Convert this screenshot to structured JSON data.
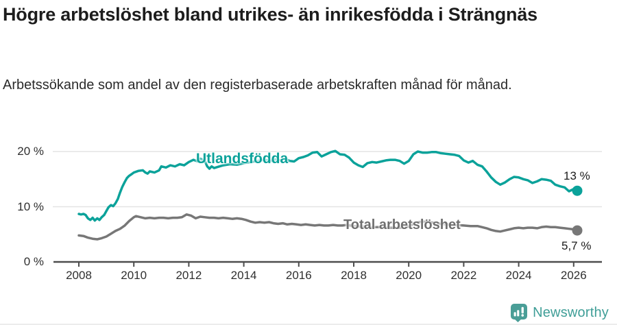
{
  "header": {
    "title": "Högre arbetslöshet bland utrikes- än inrikesfödda i Strängnäs",
    "subtitle": "Arbetssökande som andel av den registerbaserade arbetskraften månad för månad."
  },
  "footer": {
    "brand": "Newsworthy",
    "logo_icon": "bar-chart-speech-bubble-icon"
  },
  "colors": {
    "teal_line": "#0ba29a",
    "gray_line": "#777777",
    "axis": "#4d4d4d",
    "grid": "#e3e3e3",
    "logo_teal": "#4a9e97",
    "text": "#1d1d1d"
  },
  "chart_data": {
    "type": "line",
    "title": "Högre arbetslöshet bland utrikes- än inrikesfödda i Strängnäs",
    "subtitle": "Arbetssökande som andel av den registerbaserade arbetskraften månad för månad.",
    "x_axis": {
      "range": [
        2007.1,
        2027.0
      ],
      "ticks": [
        2008,
        2010,
        2012,
        2014,
        2016,
        2018,
        2020,
        2022,
        2024,
        2026
      ]
    },
    "y_axis": {
      "range": [
        0,
        23
      ],
      "unit": "%",
      "ticks": [
        {
          "value": 0,
          "label": "0 %"
        },
        {
          "value": 10,
          "label": "10 %"
        },
        {
          "value": 20,
          "label": "20 %"
        }
      ]
    },
    "grid": "horizontal-only",
    "legend_position": "inline-labels",
    "series": [
      {
        "name": "Utlandsfödda",
        "color": "#0ba29a",
        "end_label": "13 %",
        "end_value": 13,
        "points": [
          [
            2008.0,
            8.7
          ],
          [
            2008.08,
            8.6
          ],
          [
            2008.17,
            8.7
          ],
          [
            2008.25,
            8.5
          ],
          [
            2008.33,
            7.9
          ],
          [
            2008.42,
            7.6
          ],
          [
            2008.5,
            8.0
          ],
          [
            2008.58,
            7.5
          ],
          [
            2008.67,
            7.9
          ],
          [
            2008.75,
            7.6
          ],
          [
            2008.83,
            8.1
          ],
          [
            2008.92,
            8.5
          ],
          [
            2009.0,
            9.2
          ],
          [
            2009.08,
            9.9
          ],
          [
            2009.17,
            10.3
          ],
          [
            2009.25,
            10.1
          ],
          [
            2009.33,
            10.6
          ],
          [
            2009.42,
            11.4
          ],
          [
            2009.5,
            12.6
          ],
          [
            2009.58,
            13.6
          ],
          [
            2009.67,
            14.5
          ],
          [
            2009.75,
            15.2
          ],
          [
            2009.83,
            15.6
          ],
          [
            2009.92,
            15.9
          ],
          [
            2010.0,
            16.2
          ],
          [
            2010.17,
            16.5
          ],
          [
            2010.33,
            16.6
          ],
          [
            2010.42,
            16.2
          ],
          [
            2010.5,
            16.0
          ],
          [
            2010.58,
            16.4
          ],
          [
            2010.75,
            16.2
          ],
          [
            2010.92,
            16.6
          ],
          [
            2011.0,
            17.3
          ],
          [
            2011.17,
            17.1
          ],
          [
            2011.33,
            17.5
          ],
          [
            2011.5,
            17.3
          ],
          [
            2011.67,
            17.7
          ],
          [
            2011.83,
            17.5
          ],
          [
            2012.0,
            18.1
          ],
          [
            2012.17,
            18.5
          ],
          [
            2012.33,
            18.2
          ],
          [
            2012.42,
            18.7
          ],
          [
            2012.58,
            18.3
          ],
          [
            2012.67,
            17.3
          ],
          [
            2012.75,
            16.9
          ],
          [
            2012.83,
            17.3
          ],
          [
            2012.92,
            17.0
          ],
          [
            2013.25,
            17.5
          ],
          [
            2013.5,
            17.7
          ],
          [
            2013.75,
            17.6
          ],
          [
            2014.0,
            17.9
          ],
          [
            2014.25,
            18.1
          ],
          [
            2014.5,
            18.3
          ],
          [
            2014.75,
            18.5
          ],
          [
            2015.0,
            18.3
          ],
          [
            2015.17,
            18.6
          ],
          [
            2015.33,
            18.4
          ],
          [
            2015.5,
            18.7
          ],
          [
            2015.67,
            18.3
          ],
          [
            2015.83,
            18.2
          ],
          [
            2016.0,
            18.8
          ],
          [
            2016.17,
            19.0
          ],
          [
            2016.33,
            19.3
          ],
          [
            2016.5,
            19.8
          ],
          [
            2016.67,
            19.9
          ],
          [
            2016.83,
            19.1
          ],
          [
            2017.0,
            19.5
          ],
          [
            2017.17,
            19.9
          ],
          [
            2017.33,
            20.1
          ],
          [
            2017.5,
            19.5
          ],
          [
            2017.67,
            19.4
          ],
          [
            2017.83,
            18.9
          ],
          [
            2018.0,
            18.0
          ],
          [
            2018.17,
            17.5
          ],
          [
            2018.33,
            17.2
          ],
          [
            2018.5,
            17.9
          ],
          [
            2018.67,
            18.1
          ],
          [
            2018.83,
            18.0
          ],
          [
            2019.0,
            18.2
          ],
          [
            2019.17,
            18.4
          ],
          [
            2019.33,
            18.5
          ],
          [
            2019.5,
            18.5
          ],
          [
            2019.67,
            18.3
          ],
          [
            2019.83,
            17.8
          ],
          [
            2020.0,
            18.3
          ],
          [
            2020.17,
            19.5
          ],
          [
            2020.33,
            20.0
          ],
          [
            2020.5,
            19.8
          ],
          [
            2020.67,
            19.8
          ],
          [
            2020.83,
            19.9
          ],
          [
            2021.0,
            19.9
          ],
          [
            2021.17,
            19.7
          ],
          [
            2021.33,
            19.6
          ],
          [
            2021.5,
            19.5
          ],
          [
            2021.67,
            19.4
          ],
          [
            2021.83,
            19.2
          ],
          [
            2022.0,
            18.4
          ],
          [
            2022.17,
            18.0
          ],
          [
            2022.33,
            18.3
          ],
          [
            2022.5,
            17.6
          ],
          [
            2022.67,
            17.3
          ],
          [
            2022.83,
            16.4
          ],
          [
            2023.0,
            15.3
          ],
          [
            2023.17,
            14.5
          ],
          [
            2023.33,
            14.0
          ],
          [
            2023.5,
            14.4
          ],
          [
            2023.67,
            15.0
          ],
          [
            2023.83,
            15.4
          ],
          [
            2024.0,
            15.3
          ],
          [
            2024.17,
            15.0
          ],
          [
            2024.33,
            14.8
          ],
          [
            2024.5,
            14.3
          ],
          [
            2024.67,
            14.6
          ],
          [
            2024.83,
            15.0
          ],
          [
            2025.0,
            14.9
          ],
          [
            2025.17,
            14.7
          ],
          [
            2025.33,
            14.0
          ],
          [
            2025.5,
            13.7
          ],
          [
            2025.67,
            13.5
          ],
          [
            2025.83,
            12.8
          ],
          [
            2026.0,
            13.2
          ],
          [
            2026.13,
            12.9
          ]
        ]
      },
      {
        "name": "Total arbetslöshet",
        "color": "#777777",
        "end_label": "5,7 %",
        "end_value": 5.7,
        "points": [
          [
            2008.0,
            4.8
          ],
          [
            2008.17,
            4.7
          ],
          [
            2008.33,
            4.4
          ],
          [
            2008.5,
            4.2
          ],
          [
            2008.67,
            4.1
          ],
          [
            2008.83,
            4.3
          ],
          [
            2009.0,
            4.6
          ],
          [
            2009.17,
            5.1
          ],
          [
            2009.33,
            5.6
          ],
          [
            2009.5,
            6.0
          ],
          [
            2009.67,
            6.6
          ],
          [
            2009.83,
            7.4
          ],
          [
            2010.0,
            8.1
          ],
          [
            2010.08,
            8.3
          ],
          [
            2010.25,
            8.1
          ],
          [
            2010.42,
            7.9
          ],
          [
            2010.58,
            8.0
          ],
          [
            2010.75,
            7.9
          ],
          [
            2010.92,
            8.0
          ],
          [
            2011.08,
            8.0
          ],
          [
            2011.25,
            7.9
          ],
          [
            2011.42,
            8.0
          ],
          [
            2011.58,
            8.0
          ],
          [
            2011.75,
            8.1
          ],
          [
            2011.92,
            8.6
          ],
          [
            2012.08,
            8.4
          ],
          [
            2012.25,
            7.9
          ],
          [
            2012.42,
            8.2
          ],
          [
            2012.58,
            8.1
          ],
          [
            2012.75,
            8.0
          ],
          [
            2012.92,
            8.0
          ],
          [
            2013.08,
            7.9
          ],
          [
            2013.25,
            8.0
          ],
          [
            2013.42,
            7.9
          ],
          [
            2013.58,
            7.8
          ],
          [
            2013.75,
            7.9
          ],
          [
            2013.92,
            7.8
          ],
          [
            2014.08,
            7.6
          ],
          [
            2014.25,
            7.3
          ],
          [
            2014.42,
            7.1
          ],
          [
            2014.58,
            7.2
          ],
          [
            2014.75,
            7.1
          ],
          [
            2014.92,
            7.2
          ],
          [
            2015.08,
            7.0
          ],
          [
            2015.25,
            6.9
          ],
          [
            2015.42,
            7.0
          ],
          [
            2015.58,
            6.8
          ],
          [
            2015.75,
            6.9
          ],
          [
            2015.92,
            6.8
          ],
          [
            2016.08,
            6.7
          ],
          [
            2016.25,
            6.8
          ],
          [
            2016.42,
            6.7
          ],
          [
            2016.58,
            6.6
          ],
          [
            2016.75,
            6.7
          ],
          [
            2016.92,
            6.6
          ],
          [
            2017.08,
            6.6
          ],
          [
            2017.25,
            6.7
          ],
          [
            2017.42,
            6.6
          ],
          [
            2017.58,
            6.6
          ],
          [
            2017.75,
            6.7
          ],
          [
            2018.0,
            6.5
          ],
          [
            2018.33,
            6.4
          ],
          [
            2018.67,
            6.3
          ],
          [
            2019.0,
            6.3
          ],
          [
            2019.33,
            6.2
          ],
          [
            2019.67,
            6.2
          ],
          [
            2020.0,
            6.4
          ],
          [
            2020.25,
            7.1
          ],
          [
            2020.5,
            7.3
          ],
          [
            2020.75,
            7.2
          ],
          [
            2021.0,
            7.0
          ],
          [
            2021.33,
            6.8
          ],
          [
            2021.67,
            6.7
          ],
          [
            2022.0,
            6.6
          ],
          [
            2022.25,
            6.5
          ],
          [
            2022.5,
            6.5
          ],
          [
            2022.67,
            6.3
          ],
          [
            2022.83,
            6.1
          ],
          [
            2023.0,
            5.8
          ],
          [
            2023.17,
            5.6
          ],
          [
            2023.33,
            5.5
          ],
          [
            2023.5,
            5.7
          ],
          [
            2023.67,
            5.9
          ],
          [
            2023.83,
            6.1
          ],
          [
            2024.0,
            6.2
          ],
          [
            2024.17,
            6.1
          ],
          [
            2024.33,
            6.2
          ],
          [
            2024.5,
            6.2
          ],
          [
            2024.67,
            6.1
          ],
          [
            2024.83,
            6.3
          ],
          [
            2025.0,
            6.4
          ],
          [
            2025.17,
            6.3
          ],
          [
            2025.33,
            6.3
          ],
          [
            2025.5,
            6.2
          ],
          [
            2025.67,
            6.1
          ],
          [
            2025.83,
            6.0
          ],
          [
            2026.0,
            5.9
          ],
          [
            2026.13,
            5.7
          ]
        ]
      }
    ]
  }
}
